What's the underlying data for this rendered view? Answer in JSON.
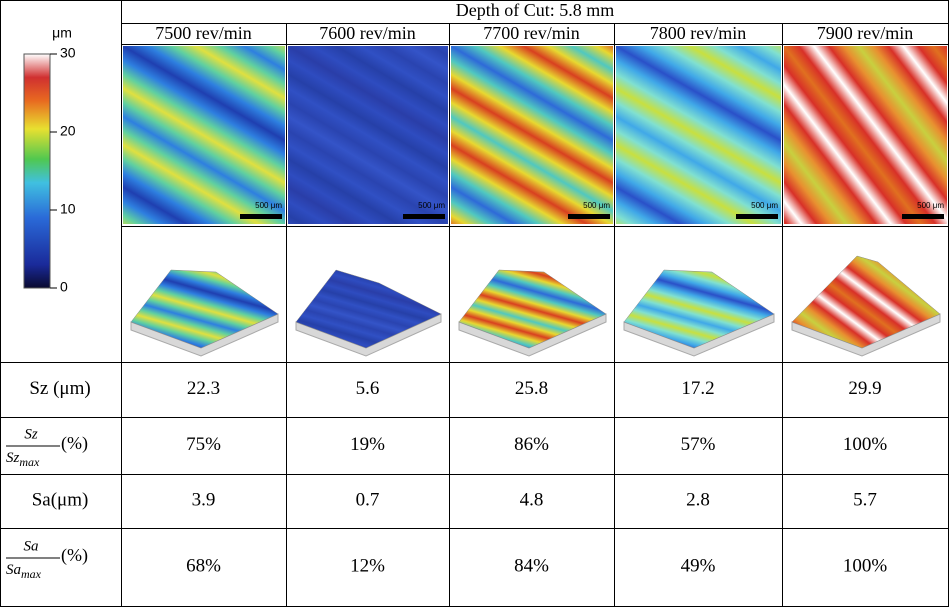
{
  "colorbar": {
    "unit": "μm",
    "lim": [
      0,
      30
    ],
    "ticks": [
      30,
      20,
      10,
      0
    ]
  },
  "table": {
    "title": "Depth of Cut: 5.8 mm",
    "scale_bar": "500 μm",
    "columns": [
      "7500 rev/min",
      "7600 rev/min",
      "7700 rev/min",
      "7800 rev/min",
      "7900 rev/min"
    ],
    "rows": [
      {
        "label": "Sz (μm)",
        "cells": [
          "22.3",
          "5.6",
          "25.8",
          "17.2",
          "29.9"
        ]
      },
      {
        "label": {
          "numerator": "Sz",
          "denominator": "Sz",
          "subscript": "max",
          "unit": "(%)"
        },
        "cells": [
          "75%",
          "19%",
          "86%",
          "57%",
          "100%"
        ]
      },
      {
        "label": "Sa(μm)",
        "cells": [
          "3.9",
          "0.7",
          "4.8",
          "2.8",
          "5.7"
        ]
      },
      {
        "label": {
          "numerator": "Sa",
          "denominator": "Sa",
          "subscript": "max",
          "unit": "(%)"
        },
        "cells": [
          "68%",
          "12%",
          "84%",
          "49%",
          "100%"
        ]
      }
    ]
  }
}
